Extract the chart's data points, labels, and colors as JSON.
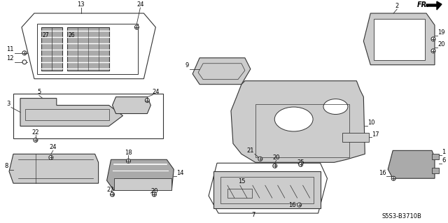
{
  "bg_color": "#ffffff",
  "line_color": "#333333",
  "fc_light": "#cccccc",
  "fc_mid": "#aaaaaa",
  "diagram_code": "S5S3-B3710B"
}
